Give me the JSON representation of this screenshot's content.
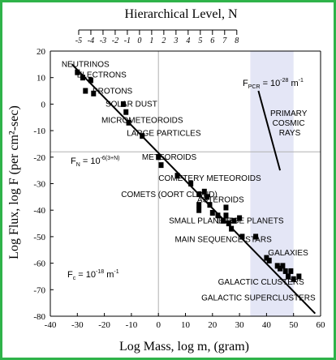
{
  "chart_data": {
    "type": "scatter",
    "xlabel": "Log Mass, log m, (gram)",
    "ylabel": "Log Flux, log F (per cm²-sec)",
    "top_axis_label": "Hierarchical Level, N",
    "xlim": [
      -40,
      60
    ],
    "ylim": [
      -80,
      20
    ],
    "x_ticks": [
      -40,
      -30,
      -20,
      -10,
      0,
      10,
      20,
      30,
      40,
      50,
      60
    ],
    "y_ticks": [
      20,
      10,
      0,
      -10,
      -20,
      -30,
      -40,
      -50,
      -60,
      -70,
      -80
    ],
    "top_ticks": [
      "-5",
      "-4",
      "-3",
      "-2",
      "-1",
      "0",
      "1",
      "2",
      "3",
      "4",
      "5",
      "6",
      "7",
      "8"
    ],
    "top_tick_x_log_mass": [
      -29.5,
      -25,
      -20.5,
      -16,
      -11.5,
      -7,
      -2.5,
      2,
      6.5,
      11,
      15.5,
      20,
      24.5,
      29
    ],
    "grid": false,
    "reference_lines": {
      "x": 0,
      "y": -18
    },
    "fit_line": {
      "x": [
        -32,
        58
      ],
      "y": [
        15,
        -79
      ]
    },
    "pcr_line": {
      "x": [
        45,
        37
      ],
      "y": [
        -25,
        5
      ]
    },
    "pcr_shaded_xrange": [
      34,
      50
    ],
    "points": {
      "x": [
        -30,
        -28,
        -27,
        -25,
        -24,
        -13,
        -12,
        -11,
        -6,
        0,
        1,
        7,
        12,
        15,
        15,
        15,
        17,
        18,
        19,
        20,
        22,
        24,
        25,
        25,
        26,
        27,
        28,
        30,
        31,
        36,
        40,
        41,
        44,
        45,
        46,
        47,
        48,
        49,
        50,
        52
      ],
      "y": [
        12,
        10,
        5,
        9,
        4,
        0,
        -3,
        -7,
        -12,
        -20,
        -23,
        -27,
        -30,
        -34,
        -38,
        -40,
        -33,
        -35,
        -38,
        -41,
        -42,
        -44,
        -39,
        -42,
        -45,
        -47,
        -44,
        -43,
        -50,
        -50,
        -58,
        -59,
        -61,
        -62,
        -61,
        -63,
        -65,
        -63,
        -66,
        -65
      ]
    },
    "labels": [
      {
        "text": "NEUTRINOS",
        "x": -27,
        "y": 14
      },
      {
        "text": "ELECTRONS",
        "x": -21,
        "y": 10
      },
      {
        "text": "PROTONS",
        "x": -17,
        "y": 4
      },
      {
        "text": "SOLAR DUST",
        "x": -10,
        "y": -1
      },
      {
        "text": "MICROMETEOROIDS",
        "x": -6,
        "y": -7
      },
      {
        "text": "LARGE PARTICLES",
        "x": 2,
        "y": -12
      },
      {
        "text": "METEOROIDS",
        "x": 4,
        "y": -21
      },
      {
        "text": "COMETERY METEOROIDS",
        "x": 19,
        "y": -29
      },
      {
        "text": "COMETS (OORT CLOUD)",
        "x": 4,
        "y": -35
      },
      {
        "text": "ASTEROIDS",
        "x": 23,
        "y": -37
      },
      {
        "text": "SMALL PLANETS",
        "x": 16,
        "y": -45
      },
      {
        "text": "LARGE PLANETS",
        "x": 34,
        "y": -45
      },
      {
        "text": "MAIN SEQUENCE STARS",
        "x": 24,
        "y": -52
      },
      {
        "text": "GALAXIES",
        "x": 48,
        "y": -57
      },
      {
        "text": "GALACTIC CLUSTERS",
        "x": 38,
        "y": -68
      },
      {
        "text": "GALACTIC SUPERCLUSTERS",
        "x": 37,
        "y": -74
      }
    ],
    "primary_cosmic_rays": [
      "PRIMARY",
      "COSMIC",
      "RAYS"
    ],
    "equations": {
      "fpcr": {
        "F": "F",
        "sub": "PCR",
        "eq": " = 10",
        "exp": "-28",
        "unit": " m",
        "unitexp": "-1"
      },
      "fn": {
        "F": "F",
        "sub": "N",
        "eq": " = 10",
        "exp": "-6(3+N)"
      },
      "fc": {
        "F": "F",
        "sub": "c",
        "eq": " = 10",
        "exp": "-18",
        "unit": " m",
        "unitexp": "-1"
      }
    }
  }
}
